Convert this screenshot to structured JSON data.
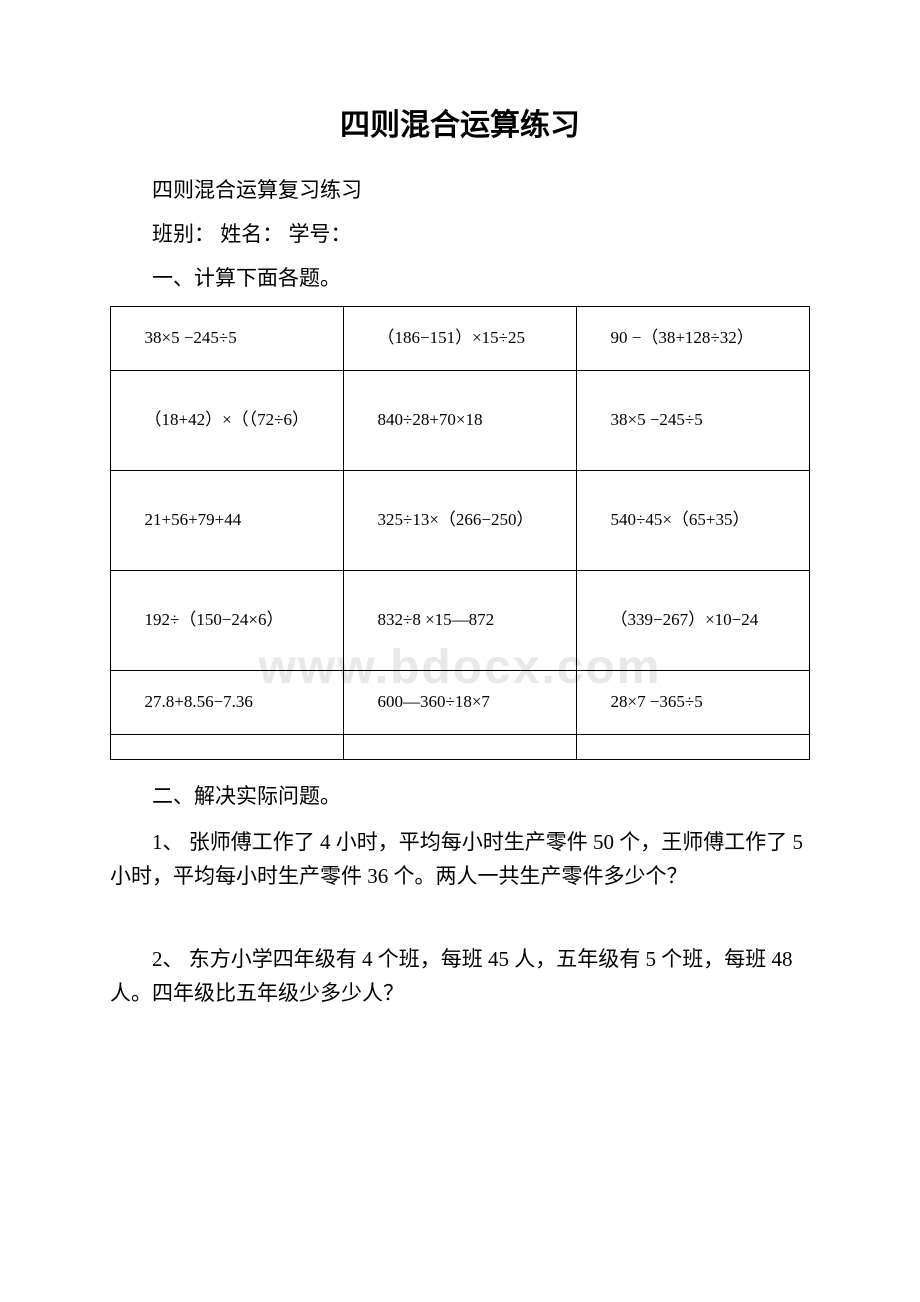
{
  "title": "四则混合运算练习",
  "subtitle1": "四则混合运算复习练习",
  "subtitle2": "班别：  姓名：  学号：",
  "section1_heading": "一、计算下面各题。",
  "table": {
    "rows": [
      [
        "38×5 −245÷5",
        "（186−151）×15÷25",
        "90 −（38+128÷32）"
      ],
      [
        "（18+42）×（（72÷6）",
        "840÷28+70×18",
        "38×5 −245÷5"
      ],
      [
        "21+56+79+44",
        "325÷13×（266−250）",
        "540÷45×（65+35）"
      ],
      [
        "192÷（150−24×6）",
        "832÷8 ×15—872",
        "（339−267）×10−24"
      ],
      [
        "27.8+8.56−7.36",
        "600—360÷18×7",
        "28×7 −365÷5"
      ]
    ],
    "border_color": "#000000",
    "cell_fontsize": 17
  },
  "section2_heading": "二、解决实际问题。",
  "questions": [
    "1、 张师傅工作了 4 小时，平均每小时生产零件 50 个，王师傅工作了 5 小时，平均每小时生产零件 36 个。两人一共生产零件多少个？",
    "2、 东方小学四年级有 4 个班，每班 45 人，五年级有 5 个班，每班 48 人。四年级比五年级少多少人？"
  ],
  "watermark": "www.bdocx.com",
  "colors": {
    "background": "#ffffff",
    "text": "#000000",
    "watermark": "#e8e8e8",
    "border": "#000000"
  },
  "typography": {
    "title_fontsize": 30,
    "body_fontsize": 21,
    "table_fontsize": 17,
    "font_family": "SimSun"
  }
}
